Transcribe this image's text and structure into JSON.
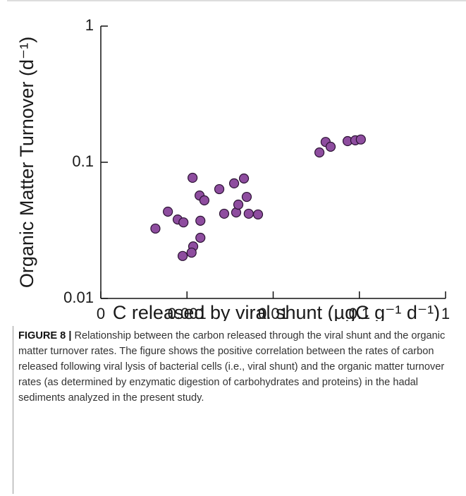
{
  "chart_data": {
    "type": "scatter",
    "x_label": "C released by viral shunt (µgC g⁻¹ d⁻¹)",
    "y_label": "Organic Matter Turnover (d⁻¹)",
    "x": [
      0.00043,
      0.0006,
      0.00078,
      0.00091,
      0.00089,
      0.00116,
      0.00118,
      0.00113,
      0.0014,
      0.00143,
      0.00143,
      0.00159,
      0.00237,
      0.0027,
      0.00352,
      0.00372,
      0.00394,
      0.00458,
      0.00493,
      0.0052,
      0.00667,
      0.0344,
      0.0406,
      0.0464,
      0.073,
      0.0897,
      0.104
    ],
    "values": [
      0.0326,
      0.0434,
      0.038,
      0.0362,
      0.0205,
      0.0769,
      0.0241,
      0.0217,
      0.057,
      0.0372,
      0.0279,
      0.0525,
      0.0635,
      0.0419,
      0.07,
      0.0428,
      0.0489,
      0.076,
      0.0557,
      0.0419,
      0.0414,
      0.118,
      0.141,
      0.13,
      0.143,
      0.145,
      0.147
    ],
    "color": "#8e4d9f",
    "edge_color": "#2b1233",
    "xlim": [
      0.0001,
      1
    ],
    "xticks": [
      {
        "value": 0.0001,
        "label": "0"
      },
      0.001,
      0.01,
      0.1,
      1
    ],
    "ylim": [
      0.01,
      1
    ],
    "yticks": [
      0.01,
      0.1,
      1
    ],
    "xlog": true,
    "ylog": true,
    "grid": false
  },
  "caption": {
    "label": "FIGURE 8 |",
    "text": "Relationship between the carbon released through the viral shunt and the organic matter turnover rates. The figure shows the positive correlation between the rates of carbon released following viral lysis of bacterial cells (i.e., viral shunt) and the organic matter turnover rates (as determined by enzymatic digestion of carbohydrates and proteins) in the hadal sediments analyzed in the present study."
  }
}
